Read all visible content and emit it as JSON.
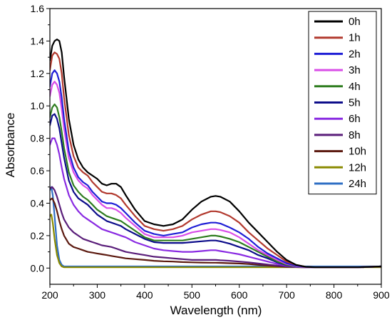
{
  "chart_data": {
    "type": "line",
    "xlabel": "Wavelength (nm)",
    "ylabel": "Absorbance",
    "xlim": [
      200,
      900
    ],
    "ylim": [
      -0.1,
      1.6
    ],
    "xticks": [
      200,
      300,
      400,
      500,
      600,
      700,
      800,
      900
    ],
    "xtick_labels": [
      "200",
      "300",
      "400",
      "500",
      "600",
      "700",
      "800",
      "900"
    ],
    "yticks": [
      0.0,
      0.2,
      0.4,
      0.6,
      0.8,
      1.0,
      1.2,
      1.4,
      1.6
    ],
    "ytick_labels": [
      "0.0",
      "0.2",
      "0.4",
      "0.6",
      "0.8",
      "1.0",
      "1.2",
      "1.4",
      "1.6"
    ],
    "grid": false,
    "legend": "top-right",
    "series": [
      {
        "name": "0h",
        "color": "#000000",
        "x": [
          200,
          205,
          210,
          215,
          220,
          225,
          230,
          240,
          250,
          260,
          270,
          280,
          290,
          300,
          310,
          320,
          330,
          340,
          350,
          360,
          380,
          400,
          420,
          440,
          460,
          480,
          500,
          520,
          540,
          550,
          560,
          580,
          600,
          620,
          640,
          660,
          680,
          700,
          720,
          740,
          760,
          800,
          850,
          900
        ],
        "y": [
          1.28,
          1.37,
          1.4,
          1.41,
          1.4,
          1.33,
          1.18,
          0.92,
          0.76,
          0.67,
          0.62,
          0.59,
          0.57,
          0.55,
          0.52,
          0.51,
          0.52,
          0.52,
          0.5,
          0.45,
          0.36,
          0.29,
          0.27,
          0.26,
          0.27,
          0.3,
          0.36,
          0.41,
          0.44,
          0.445,
          0.44,
          0.41,
          0.35,
          0.28,
          0.22,
          0.16,
          0.1,
          0.05,
          0.02,
          0.008,
          0.005,
          0.005,
          0.005,
          0.01
        ]
      },
      {
        "name": "1h",
        "color": "#b23a2f",
        "x": [
          200,
          205,
          210,
          215,
          220,
          225,
          230,
          240,
          250,
          260,
          270,
          280,
          290,
          300,
          310,
          320,
          330,
          340,
          350,
          360,
          380,
          400,
          420,
          440,
          460,
          480,
          500,
          520,
          540,
          550,
          560,
          580,
          600,
          620,
          640,
          660,
          680,
          700,
          720,
          740,
          760,
          800,
          850,
          900
        ],
        "y": [
          1.22,
          1.31,
          1.33,
          1.32,
          1.29,
          1.2,
          1.05,
          0.82,
          0.69,
          0.62,
          0.59,
          0.57,
          0.53,
          0.5,
          0.47,
          0.46,
          0.46,
          0.45,
          0.43,
          0.39,
          0.32,
          0.26,
          0.24,
          0.23,
          0.24,
          0.26,
          0.3,
          0.33,
          0.35,
          0.35,
          0.345,
          0.32,
          0.28,
          0.22,
          0.17,
          0.12,
          0.08,
          0.04,
          0.02,
          0.008,
          0.005,
          0.005,
          0.005,
          0.01
        ]
      },
      {
        "name": "2h",
        "color": "#1f1fd6",
        "x": [
          200,
          205,
          210,
          215,
          220,
          225,
          230,
          240,
          250,
          260,
          270,
          280,
          290,
          300,
          310,
          320,
          330,
          340,
          350,
          360,
          380,
          400,
          420,
          440,
          460,
          480,
          500,
          520,
          540,
          550,
          560,
          580,
          600,
          620,
          640,
          660,
          680,
          700,
          720,
          740,
          760,
          800,
          850,
          900
        ],
        "y": [
          1.12,
          1.2,
          1.22,
          1.2,
          1.15,
          1.05,
          0.92,
          0.72,
          0.62,
          0.56,
          0.53,
          0.51,
          0.47,
          0.44,
          0.41,
          0.4,
          0.4,
          0.39,
          0.37,
          0.34,
          0.28,
          0.23,
          0.21,
          0.2,
          0.21,
          0.22,
          0.25,
          0.27,
          0.28,
          0.28,
          0.275,
          0.25,
          0.22,
          0.18,
          0.13,
          0.09,
          0.06,
          0.03,
          0.015,
          0.007,
          0.005,
          0.005,
          0.005,
          0.01
        ]
      },
      {
        "name": "3h",
        "color": "#d94ee8",
        "x": [
          200,
          205,
          210,
          215,
          220,
          225,
          230,
          240,
          250,
          260,
          270,
          280,
          290,
          300,
          310,
          320,
          330,
          340,
          350,
          360,
          380,
          400,
          420,
          440,
          460,
          480,
          500,
          520,
          540,
          550,
          560,
          580,
          600,
          620,
          640,
          660,
          680,
          700,
          720,
          740,
          760,
          800,
          850,
          900
        ],
        "y": [
          1.06,
          1.13,
          1.15,
          1.13,
          1.08,
          0.98,
          0.86,
          0.68,
          0.59,
          0.54,
          0.51,
          0.49,
          0.45,
          0.42,
          0.39,
          0.37,
          0.37,
          0.36,
          0.34,
          0.31,
          0.26,
          0.21,
          0.19,
          0.19,
          0.19,
          0.2,
          0.22,
          0.23,
          0.24,
          0.24,
          0.235,
          0.22,
          0.19,
          0.15,
          0.11,
          0.08,
          0.05,
          0.025,
          0.012,
          0.006,
          0.005,
          0.005,
          0.005,
          0.01
        ]
      },
      {
        "name": "4h",
        "color": "#2e7d1f",
        "x": [
          200,
          205,
          210,
          215,
          220,
          225,
          230,
          240,
          250,
          260,
          270,
          280,
          290,
          300,
          310,
          320,
          330,
          340,
          350,
          360,
          380,
          400,
          420,
          440,
          460,
          480,
          500,
          520,
          540,
          550,
          560,
          580,
          600,
          620,
          640,
          660,
          680,
          700,
          720,
          740,
          760,
          800,
          850,
          900
        ],
        "y": [
          0.93,
          0.99,
          1.01,
          0.99,
          0.93,
          0.84,
          0.74,
          0.59,
          0.51,
          0.47,
          0.44,
          0.42,
          0.39,
          0.36,
          0.34,
          0.32,
          0.31,
          0.3,
          0.29,
          0.27,
          0.23,
          0.19,
          0.17,
          0.17,
          0.17,
          0.17,
          0.18,
          0.19,
          0.2,
          0.2,
          0.195,
          0.18,
          0.16,
          0.13,
          0.1,
          0.07,
          0.04,
          0.02,
          0.01,
          0.006,
          0.005,
          0.005,
          0.005,
          0.01
        ]
      },
      {
        "name": "5h",
        "color": "#0d0d8a",
        "x": [
          200,
          205,
          210,
          215,
          220,
          225,
          230,
          240,
          250,
          260,
          270,
          280,
          290,
          300,
          310,
          320,
          330,
          340,
          350,
          360,
          380,
          400,
          420,
          440,
          460,
          480,
          500,
          520,
          540,
          550,
          560,
          580,
          600,
          620,
          640,
          660,
          680,
          700,
          720,
          740,
          760,
          800,
          850,
          900
        ],
        "y": [
          0.88,
          0.94,
          0.95,
          0.92,
          0.86,
          0.77,
          0.68,
          0.54,
          0.47,
          0.43,
          0.41,
          0.39,
          0.36,
          0.33,
          0.31,
          0.29,
          0.28,
          0.27,
          0.26,
          0.24,
          0.21,
          0.18,
          0.16,
          0.155,
          0.155,
          0.155,
          0.16,
          0.165,
          0.17,
          0.17,
          0.165,
          0.15,
          0.13,
          0.11,
          0.08,
          0.06,
          0.035,
          0.018,
          0.01,
          0.006,
          0.005,
          0.005,
          0.005,
          0.01
        ]
      },
      {
        "name": "6h",
        "color": "#8a2be2",
        "x": [
          200,
          205,
          210,
          215,
          220,
          225,
          230,
          240,
          250,
          260,
          270,
          280,
          290,
          300,
          310,
          320,
          330,
          340,
          350,
          360,
          380,
          400,
          420,
          440,
          460,
          480,
          500,
          520,
          540,
          550,
          560,
          580,
          600,
          620,
          640,
          660,
          680,
          700,
          720,
          740,
          760,
          800,
          850,
          900
        ],
        "y": [
          0.76,
          0.8,
          0.8,
          0.76,
          0.7,
          0.62,
          0.55,
          0.45,
          0.39,
          0.35,
          0.32,
          0.3,
          0.28,
          0.26,
          0.24,
          0.23,
          0.22,
          0.21,
          0.2,
          0.19,
          0.16,
          0.14,
          0.12,
          0.11,
          0.105,
          0.1,
          0.1,
          0.105,
          0.11,
          0.11,
          0.105,
          0.095,
          0.085,
          0.07,
          0.055,
          0.04,
          0.025,
          0.015,
          0.008,
          0.005,
          0.005,
          0.005,
          0.005,
          0.01
        ]
      },
      {
        "name": "8h",
        "color": "#5a1e7a",
        "x": [
          200,
          205,
          210,
          215,
          220,
          225,
          230,
          240,
          250,
          260,
          270,
          280,
          290,
          300,
          310,
          320,
          330,
          340,
          350,
          360,
          380,
          400,
          420,
          440,
          460,
          480,
          500,
          520,
          540,
          550,
          560,
          580,
          600,
          620,
          640,
          660,
          680,
          700,
          720,
          740,
          760,
          800,
          850,
          900
        ],
        "y": [
          0.49,
          0.5,
          0.48,
          0.44,
          0.39,
          0.34,
          0.3,
          0.25,
          0.22,
          0.2,
          0.18,
          0.17,
          0.16,
          0.15,
          0.14,
          0.135,
          0.13,
          0.12,
          0.11,
          0.1,
          0.09,
          0.08,
          0.07,
          0.065,
          0.06,
          0.055,
          0.05,
          0.05,
          0.05,
          0.05,
          0.048,
          0.045,
          0.04,
          0.035,
          0.028,
          0.022,
          0.015,
          0.01,
          0.006,
          0.005,
          0.005,
          0.005,
          0.005,
          0.01
        ]
      },
      {
        "name": "10h",
        "color": "#5c1a10",
        "x": [
          200,
          205,
          210,
          215,
          220,
          225,
          230,
          240,
          250,
          260,
          270,
          280,
          290,
          300,
          310,
          320,
          330,
          340,
          350,
          360,
          380,
          400,
          420,
          440,
          460,
          480,
          500,
          520,
          540,
          550,
          560,
          580,
          600,
          620,
          640,
          660,
          680,
          700,
          720,
          740,
          760,
          800,
          850,
          900
        ],
        "y": [
          0.42,
          0.43,
          0.4,
          0.35,
          0.29,
          0.24,
          0.2,
          0.15,
          0.13,
          0.12,
          0.11,
          0.1,
          0.095,
          0.09,
          0.085,
          0.08,
          0.075,
          0.07,
          0.065,
          0.06,
          0.055,
          0.05,
          0.045,
          0.042,
          0.04,
          0.037,
          0.035,
          0.034,
          0.033,
          0.033,
          0.032,
          0.03,
          0.028,
          0.025,
          0.02,
          0.016,
          0.012,
          0.008,
          0.006,
          0.005,
          0.005,
          0.005,
          0.005,
          0.01
        ]
      },
      {
        "name": "12h",
        "color": "#8a8a00",
        "x": [
          200,
          203,
          206,
          210,
          215,
          220,
          225,
          230,
          240,
          250,
          260,
          280,
          300,
          350,
          400,
          450,
          500,
          550,
          600,
          650,
          700,
          750,
          800,
          850,
          900
        ],
        "y": [
          0.32,
          0.33,
          0.28,
          0.18,
          0.08,
          0.03,
          0.01,
          0.005,
          0.005,
          0.005,
          0.005,
          0.005,
          0.005,
          0.005,
          0.005,
          0.005,
          0.005,
          0.005,
          0.005,
          0.005,
          0.005,
          0.005,
          0.005,
          0.005,
          0.005
        ]
      },
      {
        "name": "24h",
        "color": "#2f6fc4",
        "x": [
          200,
          203,
          206,
          210,
          215,
          220,
          225,
          230,
          240,
          250,
          260,
          280,
          300,
          350,
          400,
          450,
          500,
          550,
          600,
          650,
          700,
          750,
          800,
          850,
          900
        ],
        "y": [
          0.48,
          0.5,
          0.45,
          0.32,
          0.14,
          0.05,
          0.02,
          0.01,
          0.01,
          0.01,
          0.01,
          0.01,
          0.01,
          0.01,
          0.01,
          0.01,
          0.01,
          0.01,
          0.01,
          0.01,
          0.01,
          0.01,
          0.01,
          0.01,
          0.01
        ]
      }
    ]
  }
}
